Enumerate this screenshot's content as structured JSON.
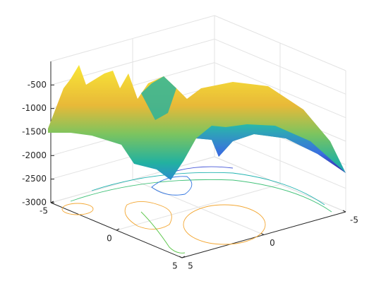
{
  "chart_data": {
    "type": "surface3d",
    "xlim": [
      -5,
      5
    ],
    "xticks": [
      -5,
      0,
      5
    ],
    "ylim": [
      -5,
      5
    ],
    "yticks": [
      -5,
      0,
      5
    ],
    "zlim": [
      -3000,
      0
    ],
    "zticks": [
      -3000,
      -2500,
      -2000,
      -1500,
      -1000,
      -500
    ],
    "grid": true,
    "contour": true
  }
}
